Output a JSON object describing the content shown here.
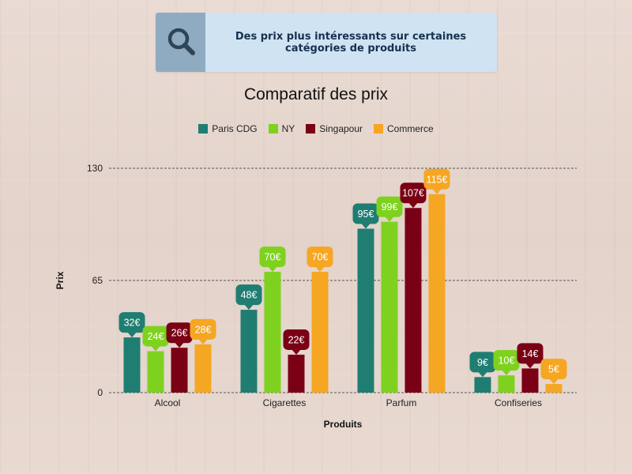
{
  "banner": {
    "icon": "magnifier-icon",
    "text": "Des prix plus intéressants sur certaines catégories de produits"
  },
  "chart_data": {
    "type": "bar",
    "title": "Comparatif des prix",
    "xlabel": "Produits",
    "ylabel": "Prix",
    "ylim": [
      0,
      130
    ],
    "yticks": [
      0,
      65,
      130
    ],
    "grid": true,
    "legend_position": "top-center",
    "categories": [
      "Alcool",
      "Cigarettes",
      "Parfum",
      "Confiseries"
    ],
    "series": [
      {
        "name": "Paris CDG",
        "color": "#1f7d72",
        "values": [
          32,
          48,
          95,
          9
        ],
        "labels": [
          "32€",
          "48€",
          "95€",
          "9€"
        ]
      },
      {
        "name": "NY",
        "color": "#7fd11f",
        "values": [
          24,
          70,
          99,
          10
        ],
        "labels": [
          "24€",
          "70€",
          "99€",
          "10€"
        ]
      },
      {
        "name": "Singapour",
        "color": "#7a0015",
        "values": [
          26,
          22,
          107,
          14
        ],
        "labels": [
          "26€",
          "22€",
          "107€",
          "14€"
        ]
      },
      {
        "name": "Commerce",
        "color": "#f5a623",
        "values": [
          28,
          70,
          115,
          5
        ],
        "labels": [
          "28€",
          "70€",
          "115€",
          "5€"
        ]
      }
    ]
  }
}
